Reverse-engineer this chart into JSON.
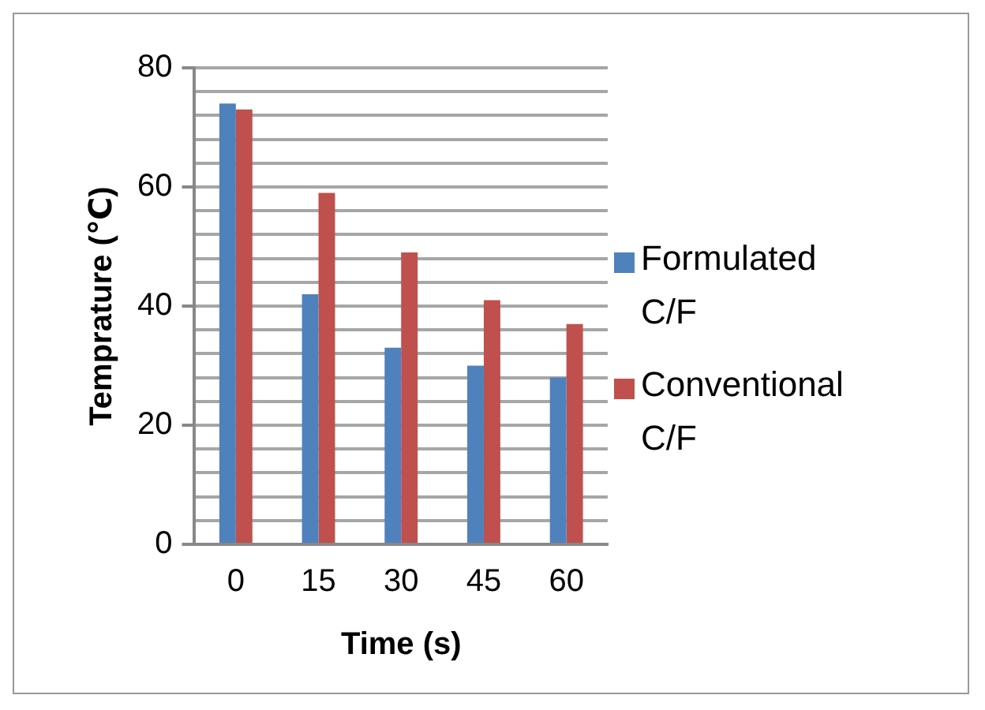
{
  "chart_data": {
    "type": "bar",
    "xlabel": "Time (s)",
    "ylabel": "Temprature (℃)",
    "categories": [
      "0",
      "15",
      "30",
      "45",
      "60"
    ],
    "series": [
      {
        "name": "Formulated C/F",
        "color": "#4f81bd",
        "values": [
          74,
          42,
          33,
          30,
          28
        ]
      },
      {
        "name": "Conventional C/F",
        "color": "#c0504d",
        "values": [
          73,
          59,
          49,
          41,
          37
        ]
      }
    ],
    "ylim": [
      0,
      80
    ],
    "yticks": [
      0,
      {
        "value": 4,
        "label": null
      },
      {
        "value": 8,
        "label": null
      },
      {
        "value": 12,
        "label": null
      },
      {
        "value": 16,
        "label": null
      },
      20,
      {
        "value": 24,
        "label": null
      },
      {
        "value": 28,
        "label": null
      },
      {
        "value": 32,
        "label": null
      },
      {
        "value": 36,
        "label": null
      },
      40,
      {
        "value": 44,
        "label": null
      },
      {
        "value": 48,
        "label": null
      },
      {
        "value": 52,
        "label": null
      },
      {
        "value": 56,
        "label": null
      },
      60,
      {
        "value": 64,
        "label": null
      },
      {
        "value": 68,
        "label": null
      },
      {
        "value": 72,
        "label": null
      },
      {
        "value": 76,
        "label": null
      },
      80
    ],
    "grid": "y",
    "legend": "right"
  }
}
